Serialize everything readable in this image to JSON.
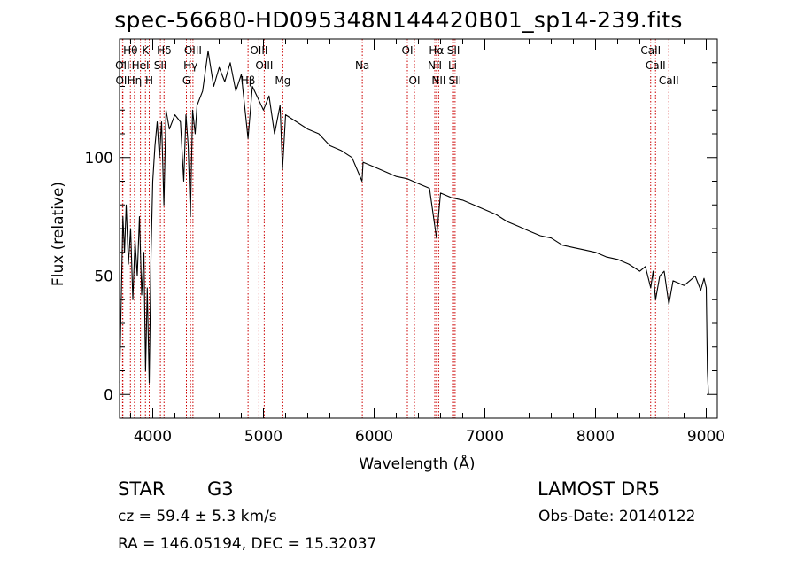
{
  "title": "spec-56680-HD095348N144420B01_sp14-239.fits",
  "info": {
    "object_class": "STAR",
    "subclass": "G3",
    "survey": "LAMOST DR5",
    "redshift": "cz = 59.4 ± 5.3 km/s",
    "obs_date": "Obs-Date: 20140122",
    "coords": "RA = 146.05194, DEC =  15.32037"
  },
  "chart_data": {
    "type": "line",
    "title": "spec-56680-HD095348N144420B01_sp14-239.fits",
    "xlabel": "Wavelength (Å)",
    "ylabel": "Flux (relative)",
    "xlim": [
      3700,
      9100
    ],
    "ylim": [
      -10,
      150
    ],
    "xticks": [
      4000,
      5000,
      6000,
      7000,
      8000,
      9000
    ],
    "yticks": [
      0,
      50,
      100
    ],
    "grid": false,
    "line_color": "#000000",
    "marker_color": "#cc0000",
    "series": [
      {
        "x": [
          3700,
          3715,
          3730,
          3745,
          3760,
          3780,
          3800,
          3820,
          3840,
          3860,
          3880,
          3900,
          3920,
          3935,
          3950,
          3968,
          3985,
          4000,
          4020,
          4040,
          4060,
          4080,
          4101,
          4120,
          4150,
          4200,
          4250,
          4280,
          4300,
          4320,
          4340,
          4360,
          4383,
          4400,
          4450,
          4500,
          4550,
          4600,
          4650,
          4700,
          4750,
          4800,
          4861,
          4900,
          4950,
          5000,
          5050,
          5100,
          5150,
          5172,
          5200,
          5300,
          5400,
          5500,
          5600,
          5700,
          5800,
          5890,
          5900,
          6000,
          6100,
          6200,
          6300,
          6400,
          6500,
          6563,
          6600,
          6700,
          6800,
          6900,
          7000,
          7100,
          7200,
          7300,
          7400,
          7500,
          7600,
          7700,
          7800,
          7900,
          8000,
          8100,
          8200,
          8300,
          8400,
          8450,
          8498,
          8520,
          8542,
          8580,
          8620,
          8662,
          8700,
          8750,
          8800,
          8850,
          8900,
          8950,
          8980,
          9000,
          9010,
          9020
        ],
        "values": [
          5,
          40,
          75,
          60,
          80,
          55,
          70,
          40,
          65,
          50,
          75,
          42,
          60,
          10,
          45,
          5,
          60,
          90,
          105,
          115,
          100,
          115,
          80,
          120,
          112,
          118,
          115,
          90,
          118,
          105,
          75,
          120,
          110,
          122,
          128,
          145,
          130,
          138,
          132,
          140,
          128,
          135,
          108,
          130,
          125,
          120,
          126,
          110,
          122,
          95,
          118,
          115,
          112,
          110,
          105,
          103,
          100,
          90,
          98,
          96,
          94,
          92,
          91,
          89,
          87,
          66,
          85,
          83,
          82,
          80,
          78,
          76,
          73,
          71,
          69,
          67,
          66,
          63,
          62,
          61,
          60,
          58,
          57,
          55,
          52,
          54,
          45,
          52,
          40,
          50,
          52,
          38,
          48,
          47,
          46,
          48,
          50,
          44,
          49,
          45,
          10,
          0
        ]
      }
    ],
    "lines": [
      {
        "name": "Hθ",
        "wl": 3798,
        "row": 0
      },
      {
        "name": "OII",
        "wl": 3727,
        "row": 1
      },
      {
        "name": "OII",
        "wl": 3730,
        "row": 2
      },
      {
        "name": "Hη",
        "wl": 3835,
        "row": 2
      },
      {
        "name": "HeI",
        "wl": 3889,
        "row": 1
      },
      {
        "name": "K",
        "wl": 3934,
        "row": 0
      },
      {
        "name": "H",
        "wl": 3968,
        "row": 2
      },
      {
        "name": "Hδ",
        "wl": 4102,
        "row": 0
      },
      {
        "name": "SII",
        "wl": 4069,
        "row": 1
      },
      {
        "name": "OIII",
        "wl": 4363,
        "row": 0
      },
      {
        "name": "Hγ",
        "wl": 4341,
        "row": 1
      },
      {
        "name": "G",
        "wl": 4304,
        "row": 2
      },
      {
        "name": "OIII",
        "wl": 4959,
        "row": 0
      },
      {
        "name": "OIII",
        "wl": 5007,
        "row": 1
      },
      {
        "name": "Hβ",
        "wl": 4861,
        "row": 2
      },
      {
        "name": "Mg",
        "wl": 5175,
        "row": 2
      },
      {
        "name": "Na",
        "wl": 5893,
        "row": 1
      },
      {
        "name": "OI",
        "wl": 6300,
        "row": 0
      },
      {
        "name": "OI",
        "wl": 6364,
        "row": 2
      },
      {
        "name": "Hα",
        "wl": 6563,
        "row": 0
      },
      {
        "name": "NII",
        "wl": 6548,
        "row": 1
      },
      {
        "name": "NII",
        "wl": 6583,
        "row": 2
      },
      {
        "name": "SII",
        "wl": 6717,
        "row": 0
      },
      {
        "name": "Li",
        "wl": 6708,
        "row": 1
      },
      {
        "name": "SII",
        "wl": 6731,
        "row": 2
      },
      {
        "name": "CaII",
        "wl": 8498,
        "row": 0
      },
      {
        "name": "CaII",
        "wl": 8542,
        "row": 1
      },
      {
        "name": "CaII",
        "wl": 8662,
        "row": 2
      }
    ]
  }
}
